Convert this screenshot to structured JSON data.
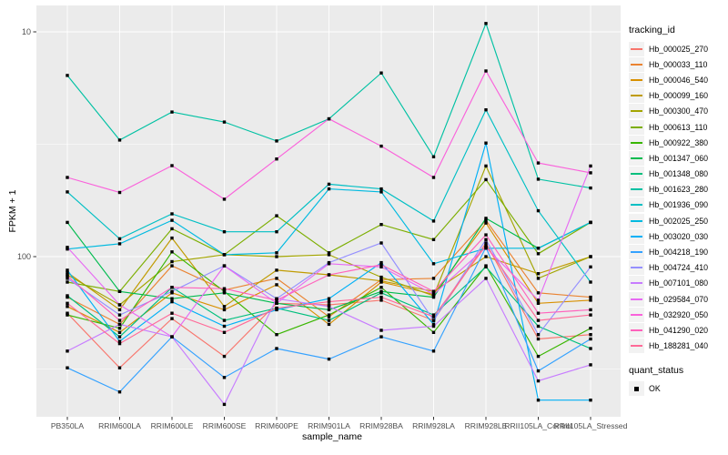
{
  "chart_data": {
    "type": "line",
    "title": "",
    "xlabel": "sample_name",
    "ylabel": "FPKM + 1",
    "y_scale": "log10",
    "y_ticks": [
      10,
      100
    ],
    "y_minor": [
      3.162,
      31.62
    ],
    "ylim_log": [
      1.94,
      126
    ],
    "grid": "on",
    "legend_position": "right",
    "point_marker": "black-square",
    "categories": [
      "PB350LA",
      "RRIM600LA",
      "RRIM600LE",
      "RRIM600SE",
      "RRIM600PE",
      "RRIM901LA",
      "RRIM928BA",
      "RRIM928LA",
      "RRIM928LE",
      "RRII105LA_Control",
      "RRII105LA_Stressed"
    ],
    "series": [
      {
        "name": "Hb_000025_270",
        "color": "#F8766D",
        "values": [
          5.6,
          3.2,
          5.3,
          3.6,
          6.2,
          6.1,
          6.4,
          5.2,
          11.5,
          4.3,
          4.5
        ]
      },
      {
        "name": "Hb_000033_110",
        "color": "#EA8331",
        "values": [
          6.6,
          5.0,
          9.1,
          7.1,
          8.0,
          5.4,
          7.9,
          8.0,
          14.5,
          6.9,
          6.6
        ]
      },
      {
        "name": "Hb_000046_540",
        "color": "#D89000",
        "values": [
          6.0,
          4.6,
          6.9,
          5.8,
          7.5,
          5.0,
          7.7,
          6.8,
          14.1,
          6.2,
          6.4
        ]
      },
      {
        "name": "Hb_000099_160",
        "color": "#C09B00",
        "values": [
          8.5,
          5.8,
          12.1,
          6.0,
          8.7,
          8.3,
          7.8,
          7.0,
          10.0,
          8.4,
          10.0
        ]
      },
      {
        "name": "Hb_000300_470",
        "color": "#A3A500",
        "values": [
          8.3,
          6.1,
          9.5,
          10.2,
          10.0,
          10.2,
          8.1,
          6.7,
          25.3,
          8.0,
          10.0
        ]
      },
      {
        "name": "Hb_000613_110",
        "color": "#7CAE00",
        "values": [
          7.7,
          7.0,
          13.3,
          10.2,
          15.2,
          10.4,
          13.9,
          11.9,
          22.0,
          10.3,
          14.2
        ]
      },
      {
        "name": "Hb_000922_380",
        "color": "#39B600",
        "values": [
          5.5,
          4.8,
          10.5,
          7.0,
          4.5,
          5.5,
          7.3,
          4.6,
          9.1,
          3.6,
          4.8
        ]
      },
      {
        "name": "Hb_001347_060",
        "color": "#00BB4E",
        "values": [
          14.2,
          7.0,
          6.5,
          6.9,
          6.2,
          5.8,
          7.0,
          6.6,
          14.8,
          10.9,
          14.2
        ]
      },
      {
        "name": "Hb_001348_080",
        "color": "#00BF7D",
        "values": [
          6.7,
          4.4,
          7.3,
          5.2,
          5.9,
          5.2,
          6.9,
          5.5,
          9.0,
          4.9,
          3.9
        ]
      },
      {
        "name": "Hb_001623_280",
        "color": "#00C1A3",
        "values": [
          64.0,
          33.0,
          44.0,
          39.7,
          32.7,
          41.0,
          65.6,
          27.8,
          109.0,
          22.1,
          20.2
        ]
      },
      {
        "name": "Hb_001936_090",
        "color": "#00BFC4",
        "values": [
          19.4,
          12.0,
          15.5,
          12.9,
          12.9,
          21.0,
          20.0,
          14.4,
          45.0,
          16.0,
          7.7
        ]
      },
      {
        "name": "Hb_002025_250",
        "color": "#00BAE0",
        "values": [
          10.8,
          11.4,
          14.5,
          10.2,
          10.4,
          20.0,
          19.4,
          9.3,
          10.9,
          10.9,
          14.2
        ]
      },
      {
        "name": "Hb_003020_030",
        "color": "#00B0F6",
        "values": [
          8.7,
          4.2,
          6.3,
          4.9,
          5.8,
          6.5,
          9.4,
          5.0,
          32.0,
          2.3,
          2.3
        ]
      },
      {
        "name": "Hb_004218_190",
        "color": "#35A2FF",
        "values": [
          3.2,
          2.5,
          4.4,
          2.9,
          3.9,
          3.5,
          4.4,
          3.8,
          11.0,
          3.1,
          4.3
        ]
      },
      {
        "name": "Hb_004724_410",
        "color": "#9590FF",
        "values": [
          8.0,
          5.5,
          7.0,
          9.1,
          6.5,
          9.4,
          11.5,
          5.2,
          11.9,
          4.5,
          9.0
        ]
      },
      {
        "name": "Hb_007101_080",
        "color": "#C77CFF",
        "values": [
          3.8,
          5.0,
          4.4,
          2.2,
          6.5,
          6.0,
          4.7,
          4.9,
          8.0,
          2.8,
          3.3
        ]
      },
      {
        "name": "Hb_029584_070",
        "color": "#E76BF3",
        "values": [
          11.0,
          6.1,
          4.4,
          9.1,
          6.2,
          9.3,
          9.0,
          6.8,
          11.0,
          6.4,
          25.3
        ]
      },
      {
        "name": "Hb_032920_050",
        "color": "#FA62DB",
        "values": [
          22.5,
          19.3,
          25.4,
          18.0,
          27.2,
          41.0,
          31.0,
          22.5,
          67.0,
          26.1,
          23.6
        ]
      },
      {
        "name": "Hb_041290_020",
        "color": "#FF62BC",
        "values": [
          8.2,
          5.2,
          7.3,
          7.2,
          6.4,
          8.3,
          9.2,
          7.0,
          12.5,
          5.6,
          5.8
        ]
      },
      {
        "name": "Hb_188281_040",
        "color": "#FF6A98",
        "values": [
          6.2,
          4.1,
          5.6,
          4.6,
          5.9,
          6.3,
          6.6,
          5.4,
          11.2,
          5.2,
          5.5
        ]
      }
    ]
  },
  "axes": {
    "y_title": "FPKM + 1",
    "x_title": "sample_name",
    "y_tick_labels": [
      "100",
      "10"
    ]
  },
  "legend": {
    "title": "tracking_id"
  },
  "legend2": {
    "title": "quant_status",
    "items": [
      {
        "label": "OK"
      }
    ]
  },
  "colors": {
    "panel_bg": "#EBEBEB",
    "grid": "#FFFFFF",
    "tick_text": "#4D4D4D",
    "tick_mark": "#333333",
    "marker": "#000000",
    "legend_key_bg": "#F2F2F2"
  }
}
